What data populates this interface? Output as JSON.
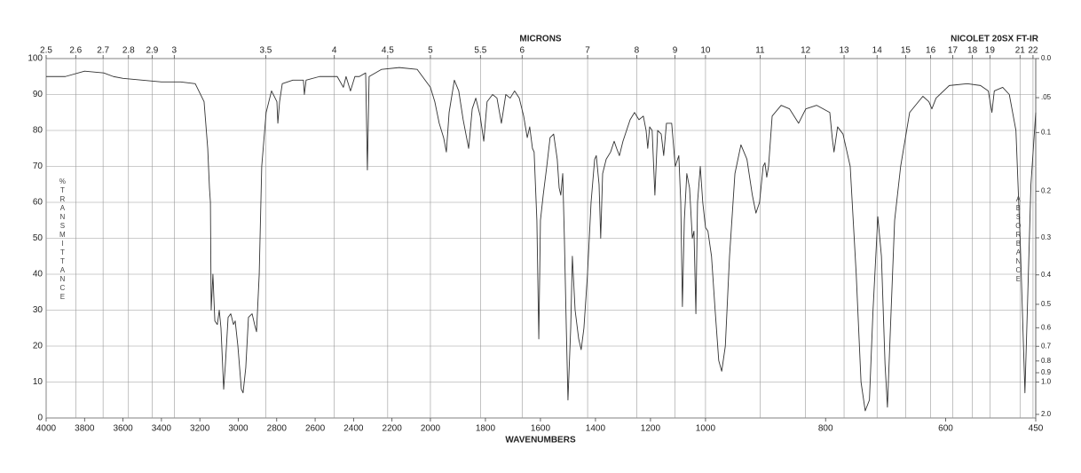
{
  "chart_data": {
    "type": "line",
    "title": "MICRONS",
    "subtitle": "NICOLET 20SX FT-IR",
    "x_label": "WAVENUMBERS",
    "y_label": "%TRANSMITTANCE",
    "y2_label": "ABSORBANCE",
    "xlim": [
      4000,
      450
    ],
    "x_scale_breaks": [
      2000,
      1000
    ],
    "xticks": [
      4000,
      3800,
      3600,
      3400,
      3200,
      3000,
      2800,
      2600,
      2400,
      2200,
      2000,
      1800,
      1600,
      1400,
      1200,
      1000,
      800,
      600,
      450
    ],
    "micron_ticks": [
      2.5,
      2.6,
      2.7,
      2.8,
      2.9,
      3,
      3.5,
      4,
      4.5,
      5,
      5.5,
      6,
      7,
      8,
      9,
      10,
      11,
      12,
      13,
      14,
      15,
      16,
      17,
      18,
      19,
      21,
      22
    ],
    "ylim": [
      0,
      100
    ],
    "yticks": [
      0,
      10,
      20,
      30,
      40,
      50,
      60,
      70,
      80,
      90,
      100
    ],
    "y2ticks": [
      {
        "value": 0,
        "label": "0.0"
      },
      {
        "value": 0.05,
        "label": ".05"
      },
      0.1,
      0.2,
      0.3,
      0.4,
      0.5,
      0.6,
      0.7,
      0.8,
      0.9,
      {
        "value": 1,
        "label": "1.0"
      },
      {
        "value": 2,
        "label": "2.0"
      }
    ],
    "grid": true,
    "color": "#333333",
    "x": [
      4000,
      3900,
      3800,
      3700,
      3650,
      3600,
      3500,
      3400,
      3300,
      3224,
      3178,
      3159,
      3150,
      3145,
      3141,
      3132,
      3122,
      3109,
      3099,
      3090,
      3076,
      3067,
      3053,
      3039,
      3025,
      3016,
      3002,
      2984,
      2975,
      2961,
      2947,
      2928,
      2915,
      2905,
      2891,
      2878,
      2855,
      2827,
      2799,
      2794,
      2785,
      2771,
      2716,
      2661,
      2656,
      2647,
      2577,
      2485,
      2453,
      2439,
      2416,
      2393,
      2370,
      2337,
      2328,
      2319,
      2254,
      2162,
      2069,
      2000,
      1984,
      1968,
      1952,
      1942,
      1932,
      1913,
      1897,
      1881,
      1861,
      1848,
      1835,
      1819,
      1806,
      1794,
      1774,
      1758,
      1742,
      1726,
      1710,
      1694,
      1677,
      1661,
      1648,
      1639,
      1629,
      1623,
      1613,
      1606,
      1600,
      1590,
      1577,
      1565,
      1552,
      1539,
      1532,
      1526,
      1519,
      1513,
      1506,
      1500,
      1490,
      1484,
      1474,
      1461,
      1452,
      1442,
      1429,
      1416,
      1403,
      1397,
      1387,
      1381,
      1374,
      1361,
      1345,
      1332,
      1323,
      1313,
      1300,
      1274,
      1258,
      1242,
      1226,
      1216,
      1210,
      1203,
      1194,
      1184,
      1174,
      1161,
      1152,
      1142,
      1123,
      1110,
      1097,
      1090,
      1084,
      1077,
      1068,
      1058,
      1048,
      1042,
      1035,
      1029,
      1019,
      1010,
      1000,
      996,
      990,
      984,
      978,
      973,
      967,
      960,
      951,
      941,
      931,
      922,
      916,
      910,
      904,
      901,
      898,
      895,
      889,
      874,
      860,
      845,
      833,
      815,
      793,
      789,
      786,
      780,
      771,
      759,
      749,
      741,
      734,
      727,
      721,
      713,
      707,
      701,
      697,
      692,
      685,
      675,
      660,
      638,
      628,
      623,
      616,
      594,
      564,
      542,
      529,
      523,
      519,
      505,
      494,
      483,
      476,
      468,
      464,
      458,
      450
    ],
    "values": [
      95,
      95,
      96.5,
      96,
      95,
      94.5,
      94,
      93.5,
      93.5,
      93,
      88,
      75,
      64,
      60,
      30,
      40,
      27,
      26,
      30,
      25,
      8,
      15,
      28,
      29,
      26,
      27,
      20,
      8,
      7,
      14,
      28,
      29,
      26,
      24,
      40,
      70,
      85,
      91,
      88,
      82,
      88,
      93,
      94,
      94,
      90,
      94,
      95,
      95,
      92,
      95,
      91,
      95,
      95,
      96,
      69,
      95,
      97,
      97.5,
      97,
      92,
      88,
      82,
      78,
      74,
      85,
      94,
      91,
      83,
      75,
      86,
      89,
      84,
      77,
      88,
      90,
      89,
      82,
      90,
      89,
      91,
      89,
      84,
      78,
      81,
      75,
      74,
      55,
      22,
      55,
      62,
      70,
      78,
      79,
      72,
      64,
      62,
      68,
      50,
      25,
      5,
      25,
      45,
      30,
      22,
      19,
      25,
      40,
      60,
      72,
      73,
      65,
      50,
      68,
      72,
      74,
      77,
      75,
      73,
      77,
      83,
      85,
      83,
      84,
      80,
      75,
      81,
      80,
      62,
      80,
      79,
      73,
      82,
      82,
      70,
      73,
      60,
      31,
      55,
      68,
      64,
      50,
      52,
      29,
      60,
      70,
      60,
      53,
      52,
      45,
      30,
      16,
      13,
      20,
      45,
      68,
      76,
      72,
      62,
      57,
      60,
      70,
      71,
      67,
      70,
      84,
      87,
      86,
      82,
      86,
      87,
      85,
      78,
      74,
      81,
      79,
      70,
      40,
      10,
      2,
      5,
      30,
      56,
      45,
      15,
      3,
      25,
      55,
      70,
      85,
      89.5,
      88,
      86,
      89,
      92.5,
      93,
      92.5,
      91,
      85,
      91,
      92,
      90,
      80,
      50,
      7,
      30,
      65,
      85
    ]
  }
}
